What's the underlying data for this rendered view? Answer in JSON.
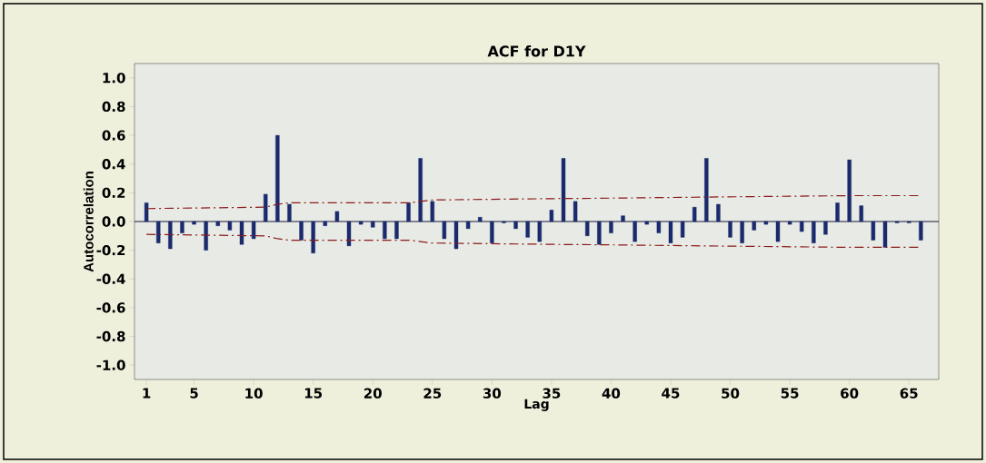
{
  "chart_data": {
    "type": "bar",
    "title": "ACF for D1Y",
    "xlabel": "Lag",
    "ylabel": "Autocorrelation",
    "x": [
      1,
      2,
      3,
      4,
      5,
      6,
      7,
      8,
      9,
      10,
      11,
      12,
      13,
      14,
      15,
      16,
      17,
      18,
      19,
      20,
      21,
      22,
      23,
      24,
      25,
      26,
      27,
      28,
      29,
      30,
      31,
      32,
      33,
      34,
      35,
      36,
      37,
      38,
      39,
      40,
      41,
      42,
      43,
      44,
      45,
      46,
      47,
      48,
      49,
      50,
      51,
      52,
      53,
      54,
      55,
      56,
      57,
      58,
      59,
      60,
      61,
      62,
      63,
      64,
      65,
      66
    ],
    "series": [
      {
        "color": "#1a2a6c",
        "values": [
          0.13,
          -0.15,
          -0.19,
          -0.08,
          -0.02,
          -0.2,
          -0.03,
          -0.06,
          -0.16,
          -0.12,
          0.19,
          0.6,
          0.12,
          -0.13,
          -0.22,
          -0.03,
          0.07,
          -0.17,
          -0.02,
          -0.04,
          -0.12,
          -0.12,
          0.13,
          0.44,
          0.14,
          -0.12,
          -0.19,
          -0.05,
          0.03,
          -0.15,
          -0.01,
          -0.05,
          -0.11,
          -0.14,
          0.08,
          0.44,
          0.14,
          -0.1,
          -0.16,
          -0.08,
          0.04,
          -0.14,
          -0.02,
          -0.08,
          -0.15,
          -0.11,
          0.1,
          0.44,
          0.12,
          -0.11,
          -0.15,
          -0.06,
          -0.02,
          -0.14,
          -0.02,
          -0.07,
          -0.15,
          -0.09,
          0.13,
          0.43,
          0.11,
          -0.13,
          -0.18,
          -0.01,
          -0.01,
          -0.13
        ]
      },
      {
        "type": "line",
        "color": "#8b1a1a",
        "line_style": "dashed",
        "x": [
          1,
          11,
          12,
          13,
          23,
          24,
          25,
          36,
          37,
          48,
          60,
          66
        ],
        "values": [
          0.09,
          0.1,
          0.12,
          0.13,
          0.13,
          0.14,
          0.15,
          0.16,
          0.16,
          0.17,
          0.18,
          0.18
        ]
      },
      {
        "type": "line",
        "color": "#8b1a1a",
        "line_style": "dashed",
        "x": [
          1,
          11,
          12,
          13,
          23,
          24,
          25,
          36,
          37,
          48,
          60,
          66
        ],
        "values": [
          -0.09,
          -0.1,
          -0.12,
          -0.13,
          -0.13,
          -0.14,
          -0.15,
          -0.16,
          -0.16,
          -0.17,
          -0.18,
          -0.18
        ]
      }
    ],
    "ref_lines": [
      {
        "axis": "y",
        "value": 0,
        "color": "#1a1a3a"
      }
    ],
    "xlim": [
      0,
      67.5
    ],
    "xticks": [
      1,
      5,
      10,
      15,
      20,
      25,
      30,
      35,
      40,
      45,
      50,
      55,
      60,
      65
    ],
    "ylim": [
      -1.1,
      1.1
    ],
    "yticks": [
      {
        "value": 1,
        "label": "1.0"
      },
      0.8,
      0.6,
      0.4,
      0.2,
      {
        "value": 0,
        "label": "0.0"
      },
      -0.2,
      -0.4,
      -0.6,
      -0.8,
      {
        "value": -1,
        "label": "-1.0"
      }
    ],
    "grid": false
  }
}
